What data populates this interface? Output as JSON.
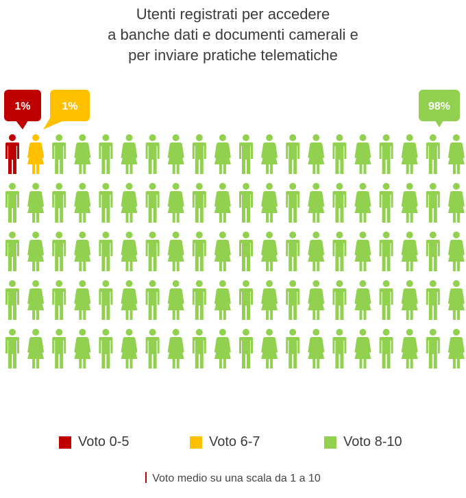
{
  "title_lines": [
    "Utenti registrati per accedere",
    "a banche dati e documenti camerali e",
    "per inviare pratiche telematiche"
  ],
  "chart_data": {
    "type": "pictogram",
    "title": "Utenti registrati per accedere a banche dati e documenti camerali e per inviare pratiche telematiche",
    "rows": 5,
    "columns": 20,
    "total_icons": 100,
    "categories": [
      "Voto 0-5",
      "Voto 6-7",
      "Voto 8-10"
    ],
    "values": [
      1,
      1,
      98
    ],
    "data_labels": [
      "1%",
      "1%",
      "98%"
    ],
    "colors": [
      "#c00000",
      "#ffc000",
      "#92d050"
    ],
    "legend_position": "bottom"
  },
  "legend": [
    {
      "label": "Voto 0-5",
      "color": "#c00000"
    },
    {
      "label": "Voto 6-7",
      "color": "#ffc000"
    },
    {
      "label": "Voto 8-10",
      "color": "#92d050"
    }
  ],
  "footnote": "Voto medio su una scala da 1 a 10"
}
